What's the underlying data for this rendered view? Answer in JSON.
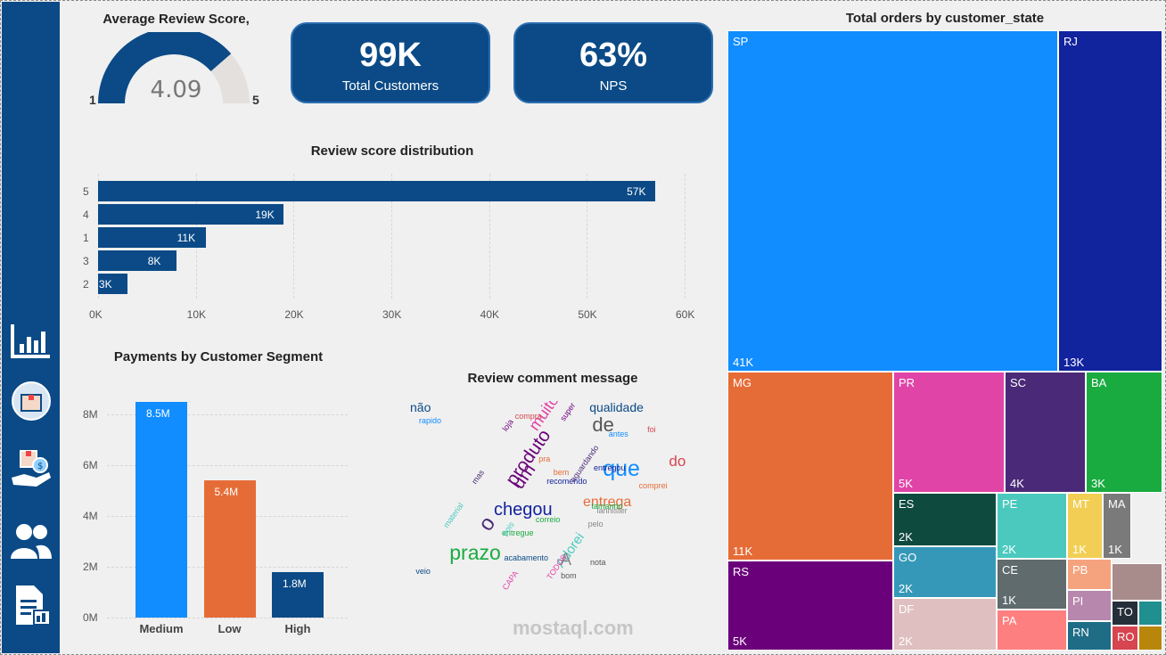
{
  "gauge": {
    "title": "Average Review Score,",
    "value": "4.09",
    "min": "1",
    "max": "5",
    "fraction": 0.7725
  },
  "kpis": [
    {
      "value": "99K",
      "label": "Total Customers"
    },
    {
      "value": "63%",
      "label": "NPS"
    }
  ],
  "review_dist": {
    "title": "Review score distribution",
    "categories": [
      "5",
      "4",
      "1",
      "3",
      "2"
    ],
    "values": [
      57,
      19,
      11,
      8,
      3
    ],
    "labels": [
      "57K",
      "19K",
      "11K",
      "8K",
      "3K"
    ],
    "ticks": [
      "0K",
      "10K",
      "20K",
      "30K",
      "40K",
      "50K",
      "60K"
    ],
    "xmax": 60
  },
  "payments": {
    "title": "Payments by Customer Segment",
    "categories": [
      "Medium",
      "Low",
      "High"
    ],
    "values": [
      8.5,
      5.4,
      1.8
    ],
    "labels": [
      "8.5M",
      "5.4M",
      "1.8M"
    ],
    "colors": [
      "#118dff",
      "#e66c37",
      "#0b4a86"
    ],
    "ticks": [
      "0M",
      "2M",
      "4M",
      "6M",
      "8M"
    ],
    "ymax": 8.8
  },
  "wordcloud": {
    "title": "Review comment message",
    "words": [
      "não",
      "produto",
      "entrega",
      "prazo",
      "muito",
      "que",
      "chegou",
      "Adorei",
      "de",
      "do",
      "o",
      "A",
      "qualidade",
      "um",
      "comprei",
      "entregue",
      "CAPA",
      "antes",
      "recomendo",
      "pois",
      "bom",
      "foi",
      "mas",
      "pelo",
      "veio",
      "loja",
      "bem",
      "correio",
      "TODOS",
      "rapido",
      "entregou",
      "material",
      "nota",
      "compra",
      "aguardando",
      "lannister",
      "acabamento",
      "super",
      "pra",
      "tamanho"
    ]
  },
  "chart_data": {
    "type": "treemap",
    "title": "Total orders by customer_state",
    "items": [
      {
        "name": "SP",
        "value": "41K",
        "color": "#118dff"
      },
      {
        "name": "RJ",
        "value": "13K",
        "color": "#12239e"
      },
      {
        "name": "MG",
        "value": "11K",
        "color": "#e66c37"
      },
      {
        "name": "PR",
        "value": "5K",
        "color": "#e044a7"
      },
      {
        "name": "SC",
        "value": "4K",
        "color": "#4a2a78"
      },
      {
        "name": "BA",
        "value": "3K",
        "color": "#1aab40"
      },
      {
        "name": "RS",
        "value": "5K",
        "color": "#6b007b"
      },
      {
        "name": "ES",
        "value": "2K",
        "color": "#0f4a3f"
      },
      {
        "name": "PE",
        "value": "2K",
        "color": "#4bc9be"
      },
      {
        "name": "MT",
        "value": "1K",
        "color": "#f2cf54"
      },
      {
        "name": "MA",
        "value": "1K",
        "color": "#7a7a7a"
      },
      {
        "name": "GO",
        "value": "2K",
        "color": "#3598b8"
      },
      {
        "name": "CE",
        "value": "1K",
        "color": "#5f6b6d"
      },
      {
        "name": "DF",
        "value": "2K",
        "color": "#dfbfbf"
      },
      {
        "name": "PA",
        "value": "",
        "color": "#fd7f7f"
      },
      {
        "name": "PB",
        "value": "",
        "color": "#f5a37e"
      },
      {
        "name": "PI",
        "value": "",
        "color": "#b887ad"
      },
      {
        "name": "RN",
        "value": "",
        "color": "#1f6c86"
      },
      {
        "name": "TO",
        "value": "",
        "color": "#252f3a"
      },
      {
        "name": "RO",
        "value": "",
        "color": "#d64550"
      }
    ]
  },
  "watermark": "mostaql.com"
}
